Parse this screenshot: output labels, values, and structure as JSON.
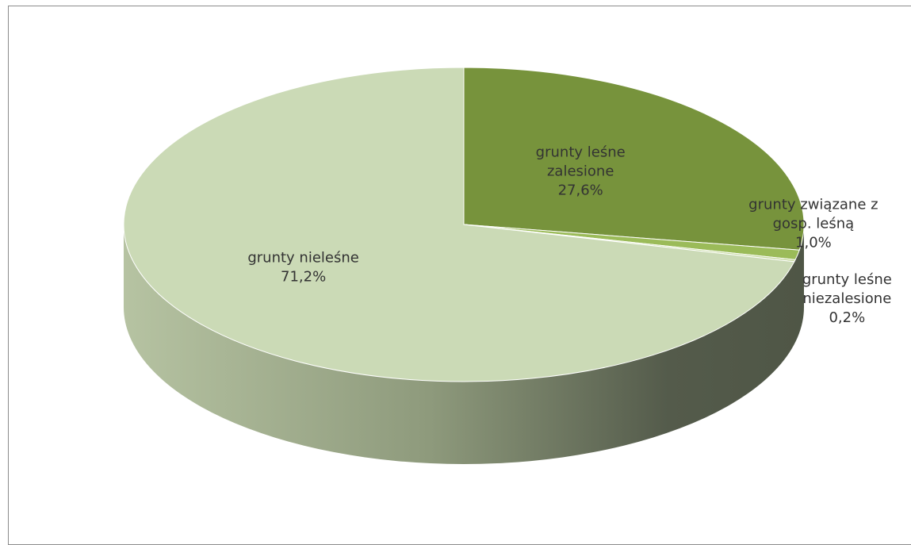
{
  "chart_data": {
    "type": "pie",
    "three_d": true,
    "title": "",
    "slices": [
      {
        "label_lines": [
          "grunty leśne",
          "zalesione"
        ],
        "value": 27.6,
        "value_label": "27,6%",
        "color": "#77933c"
      },
      {
        "label_lines": [
          "grunty związane z",
          "gosp. leśną"
        ],
        "value": 1.0,
        "value_label": "1,0%",
        "color": "#9bbb59"
      },
      {
        "label_lines": [
          "grunty leśne",
          "niezalesione"
        ],
        "value": 0.2,
        "value_label": "0,2%",
        "color": "#c3d69b"
      },
      {
        "label_lines": [
          "grunty nieleśne"
        ],
        "value": 71.2,
        "value_label": "71,2%",
        "color": "#cbdab6"
      }
    ],
    "legend": "none",
    "side_gradient": [
      "#b6c3a2",
      "#4f5646"
    ]
  }
}
